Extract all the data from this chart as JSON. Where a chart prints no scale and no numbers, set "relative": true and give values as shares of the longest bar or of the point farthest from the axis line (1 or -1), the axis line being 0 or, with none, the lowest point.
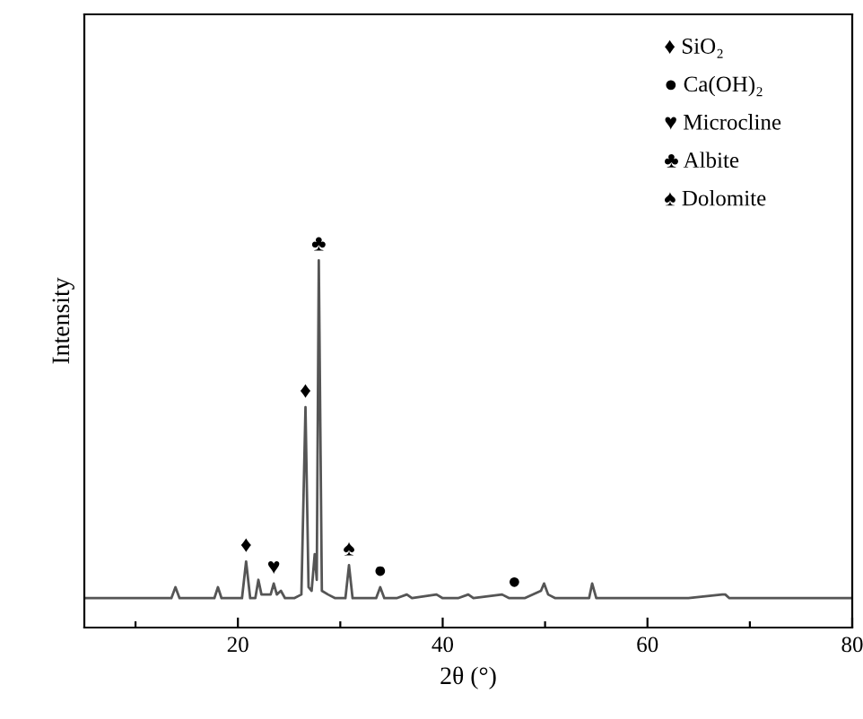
{
  "chart_data": {
    "type": "line",
    "relative": true,
    "xlabel": "2θ (°)",
    "ylabel": "Intensity",
    "tick_labels": "x",
    "grid": false,
    "legend": false,
    "marker": "none",
    "line_style": "solid",
    "xlim": [
      5,
      80
    ],
    "xticks": [
      {
        "value": 10,
        "label": null
      },
      20,
      {
        "value": 30,
        "label": null
      },
      40,
      {
        "value": 50,
        "label": null
      },
      60,
      {
        "value": 70,
        "label": null
      },
      80
    ],
    "series": [
      {
        "color": "#555555",
        "x": [
          5,
          8,
          10,
          12,
          13.5,
          13.9,
          14.3,
          16,
          17.7,
          18.05,
          18.4,
          20.4,
          20.8,
          21.2,
          21.7,
          22.0,
          22.3,
          23.2,
          23.5,
          23.8,
          24.2,
          24.6,
          25.5,
          26.2,
          26.6,
          26.9,
          27.2,
          27.5,
          27.7,
          27.9,
          28.2,
          28.8,
          29.5,
          30.5,
          30.85,
          31.2,
          32,
          33.5,
          33.9,
          34.3,
          35.5,
          36.5,
          37,
          39.4,
          40,
          41.5,
          42.5,
          43,
          45.8,
          46.5,
          47.0,
          48,
          49.6,
          49.9,
          50.3,
          51,
          54.3,
          54.6,
          55,
          57,
          60,
          62,
          64,
          67.3,
          67.6,
          68,
          70,
          73,
          76,
          80
        ],
        "values": [
          0.08,
          0.08,
          0.08,
          0.08,
          0.08,
          0.11,
          0.08,
          0.08,
          0.08,
          0.11,
          0.08,
          0.08,
          0.18,
          0.08,
          0.08,
          0.13,
          0.09,
          0.09,
          0.12,
          0.09,
          0.1,
          0.08,
          0.08,
          0.09,
          0.6,
          0.11,
          0.1,
          0.2,
          0.13,
          1.0,
          0.1,
          0.09,
          0.08,
          0.08,
          0.17,
          0.08,
          0.08,
          0.08,
          0.11,
          0.08,
          0.08,
          0.09,
          0.08,
          0.09,
          0.08,
          0.08,
          0.09,
          0.08,
          0.09,
          0.08,
          0.08,
          0.08,
          0.1,
          0.12,
          0.09,
          0.08,
          0.08,
          0.12,
          0.08,
          0.08,
          0.08,
          0.08,
          0.08,
          0.09,
          0.09,
          0.08,
          0.08,
          0.08,
          0.08,
          0.08
        ]
      }
    ],
    "annotations": [
      {
        "text": "♦",
        "x": 20.8,
        "y": 0.18
      },
      {
        "text": "♥",
        "x": 23.5,
        "y": 0.12
      },
      {
        "text": "♦",
        "x": 26.6,
        "y": 0.6
      },
      {
        "text": "♣",
        "x": 27.9,
        "y": 1.0
      },
      {
        "text": "♠",
        "x": 30.85,
        "y": 0.17
      },
      {
        "text": "●",
        "x": 33.9,
        "y": 0.11
      },
      {
        "text": "●",
        "x": 47.0,
        "y": 0.08
      },
      "♦ SiO₂",
      "● Ca(OH)₂",
      "♥ Microcline",
      "♣ Albite",
      "♠ Dolomite"
    ]
  }
}
